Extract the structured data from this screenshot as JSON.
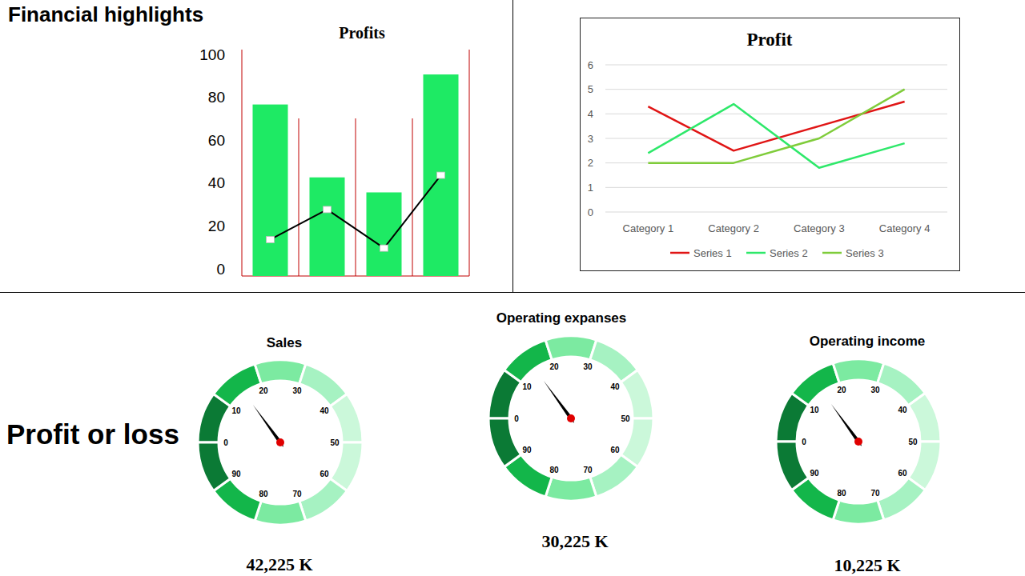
{
  "header": {
    "title": "Financial highlights",
    "section": "Profit or loss"
  },
  "chart_data": [
    {
      "type": "bar",
      "title": "Profits",
      "categories": [
        null,
        null,
        null,
        null
      ],
      "series": [
        {
          "type": "bar",
          "color": "#1eea64",
          "values": [
            80,
            46,
            39,
            94
          ]
        },
        {
          "type": "line",
          "color": "#000000",
          "marker": "square",
          "values": [
            17,
            31,
            13,
            47
          ]
        }
      ],
      "ylim": [
        0,
        100
      ],
      "yticks": [
        0,
        20,
        40,
        60,
        80,
        100
      ],
      "grid": false,
      "tick_labels": "y"
    },
    {
      "type": "line",
      "title": "Profit",
      "categories": [
        "Category 1",
        "Category 2",
        "Category 3",
        "Category 4"
      ],
      "series": [
        {
          "name": "Series 1",
          "color": "#e01515",
          "values": [
            4.3,
            2.5,
            3.5,
            4.5
          ]
        },
        {
          "name": "Series 2",
          "color": "#2ee86a",
          "values": [
            2.4,
            4.4,
            1.8,
            2.8
          ]
        },
        {
          "name": "Series 3",
          "color": "#7fcc3a",
          "values": [
            2,
            2,
            3,
            5
          ]
        }
      ],
      "ylim": [
        0,
        6
      ],
      "yticks": [
        0,
        1,
        2,
        3,
        4,
        5,
        6
      ],
      "grid": true,
      "legend": "bottom"
    },
    {
      "type": "gauge",
      "title": "Sales",
      "value": 15,
      "annotation": "42,225 K",
      "ylim": [
        0,
        100
      ],
      "yticks": [
        0,
        10,
        20,
        30,
        40,
        50,
        60,
        70,
        80,
        90
      ]
    },
    {
      "type": "gauge",
      "title": "Operating expanses",
      "value": 15,
      "annotation": "30,225 K",
      "ylim": [
        0,
        100
      ],
      "yticks": [
        0,
        10,
        20,
        30,
        40,
        50,
        60,
        70,
        80,
        90
      ]
    },
    {
      "type": "gauge",
      "title": "Operating income",
      "value": 15,
      "annotation": "10,225 K",
      "ylim": [
        0,
        100
      ],
      "yticks": [
        0,
        10,
        20,
        30,
        40,
        50,
        60,
        70,
        80,
        90
      ]
    }
  ]
}
